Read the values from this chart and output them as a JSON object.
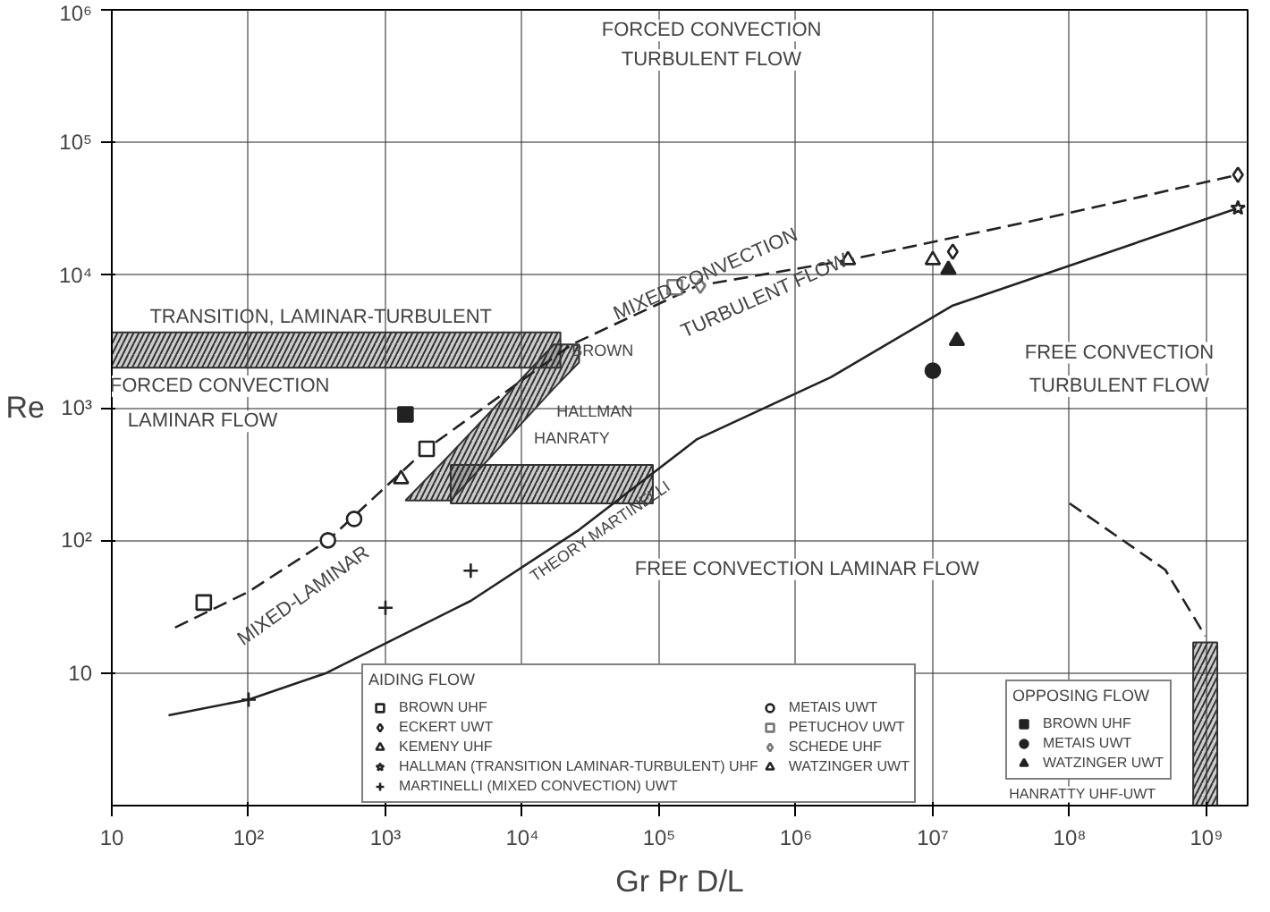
{
  "chart_data": {
    "type": "line",
    "xlabel": "Gr Pr D/L",
    "ylabel": "Re",
    "log": "xy",
    "grid": true,
    "legend": "bottom",
    "legend_title": "AIDING FLOW",
    "xlim": [
      10,
      2000000000
    ],
    "ylim": [
      1,
      1000000
    ],
    "xticks": [
      10,
      {
        "value": 100,
        "label": "10²"
      },
      {
        "value": 1000,
        "label": "10³"
      },
      {
        "value": 10000,
        "label": "10⁴"
      },
      {
        "value": 100000,
        "label": "10⁵"
      },
      {
        "value": 1000000,
        "label": "10⁶"
      },
      {
        "value": 10000000,
        "label": "10⁷"
      },
      {
        "value": 100000000,
        "label": "10⁸"
      },
      {
        "value": 1000000000,
        "label": "10⁹"
      }
    ],
    "yticks": [
      10,
      {
        "value": 100,
        "label": "10²"
      },
      {
        "value": 1000,
        "label": "10³"
      },
      {
        "value": 10000,
        "label": "10⁴"
      },
      {
        "value": 100000,
        "label": "10⁵"
      },
      {
        "value": 1000000,
        "label": "10⁶"
      }
    ],
    "series": [
      {
        "color": "#333333",
        "x": [
          10,
          19000
        ],
        "values": [
          null,
          null
        ],
        "lower": [
          2000,
          2000
        ],
        "upper": [
          3700,
          3700
        ]
      },
      {
        "color": "#333333",
        "x": [
          1400,
          3000,
          17000,
          26000
        ],
        "values": [
          null,
          null,
          null,
          null
        ],
        "lower": [
          200,
          200,
          1400,
          2200
        ],
        "upper": [
          200,
          450,
          3000,
          3000
        ]
      },
      {
        "color": "#333333",
        "x": [
          3000,
          90000
        ],
        "values": [
          null,
          null
        ],
        "lower": [
          190,
          190
        ],
        "upper": [
          370,
          370
        ]
      },
      {
        "color": "#333333",
        "x": [
          800000000,
          1200000000
        ],
        "values": [
          null,
          null
        ],
        "lower": [
          1,
          1
        ],
        "upper": [
          17,
          17
        ]
      },
      {
        "color": "#222222",
        "line_style": "dashed",
        "x": [
          29,
          100,
          380,
          2000,
          23000,
          190000,
          2400000,
          80000000,
          1700000000
        ],
        "values": [
          22,
          41,
          100,
          490,
          3000,
          8300,
          13000,
          28000,
          57000
        ]
      },
      {
        "color": "#222222",
        "line_style": "solid",
        "x": [
          26,
          100,
          370,
          4200,
          26000,
          190000,
          1800000,
          14000000,
          1700000000
        ],
        "values": [
          4.8,
          6.3,
          10,
          35,
          120,
          580,
          1700,
          5900,
          32000
        ]
      },
      {
        "color": "#222222",
        "line_style": "dashed",
        "x": [
          100000000,
          500000000,
          980000000
        ],
        "values": [
          190,
          60,
          19
        ]
      },
      {
        "type": "scatter",
        "name": "BROWN UHF",
        "marker": "square",
        "color": "#222222",
        "x": [
          47,
          2000
        ],
        "values": [
          34,
          490
        ]
      },
      {
        "type": "scatter",
        "name": "ECKERT UWT",
        "marker": "diamond",
        "color": "#222222",
        "x": [
          14000000,
          1700000000
        ],
        "values": [
          15000,
          57000
        ]
      },
      {
        "type": "scatter",
        "name": "KEMENY UHF",
        "marker": "triangle",
        "color": "#222222",
        "x": [
          1300
        ],
        "values": [
          290
        ]
      },
      {
        "type": "scatter",
        "name": "HALLMAN (TRANSITION LAMINAR-TURBULENT) UHF",
        "marker": "star",
        "color": "#222222",
        "x": [
          1700000000
        ],
        "values": [
          32000
        ]
      },
      {
        "type": "scatter",
        "name": "MARTINELLI (MIXED CONVECTION) UWT",
        "marker": "cross",
        "color": "#222222",
        "x": [
          100,
          1000,
          4200
        ],
        "values": [
          6.3,
          31,
          59
        ]
      },
      {
        "type": "scatter",
        "name": "METAIS UWT",
        "marker": "circle",
        "color": "#222222",
        "x": [
          380,
          590
        ],
        "values": [
          100,
          145
        ]
      },
      {
        "type": "scatter",
        "name": "PETUCHOV UWT",
        "marker": "square",
        "color": "#777777",
        "x": [
          130000
        ],
        "values": [
          8100
        ]
      },
      {
        "type": "scatter",
        "name": "SCHEDE UHF",
        "marker": "diamond",
        "color": "#777777",
        "x": [
          200000
        ],
        "values": [
          8300
        ]
      },
      {
        "type": "scatter",
        "name": "WATZINGER UWT",
        "marker": "triangle",
        "color": "#222222",
        "x": [
          2400000,
          10000000
        ],
        "values": [
          13000,
          13000
        ]
      },
      {
        "type": "scatter",
        "name": "BROWN UHF",
        "marker": "square",
        "color": "#222222",
        "x": [
          1400
        ],
        "values": [
          890
        ]
      },
      {
        "type": "scatter",
        "name": "METAIS UWT",
        "marker": "circle",
        "color": "#222222",
        "x": [
          10000000
        ],
        "values": [
          1900
        ]
      },
      {
        "type": "scatter",
        "name": "WATZINGER UWT",
        "marker": "triangle",
        "color": "#222222",
        "x": [
          13000000,
          15000000
        ],
        "values": [
          11000,
          3200
        ]
      }
    ],
    "annotations": [
      "OPPOSING FLOW",
      "HANRATTY UHF-UWT",
      "FORCED CONVECTION",
      "TURBULENT FLOW",
      "TRANSITION, LAMINAR-TURBULENT",
      "FORCED CONVECTION",
      "LAMINAR FLOW",
      "BROWN",
      "HALLMAN",
      "HANRATY",
      "MIXED CONVECTION",
      "TURBULENT FLOW",
      "FREE CONVECTION",
      "TURBULENT FLOW",
      "MIXED-LAMINAR",
      "THEORY MARTINELLI",
      "FREE CONVECTION LAMINAR FLOW"
    ]
  }
}
